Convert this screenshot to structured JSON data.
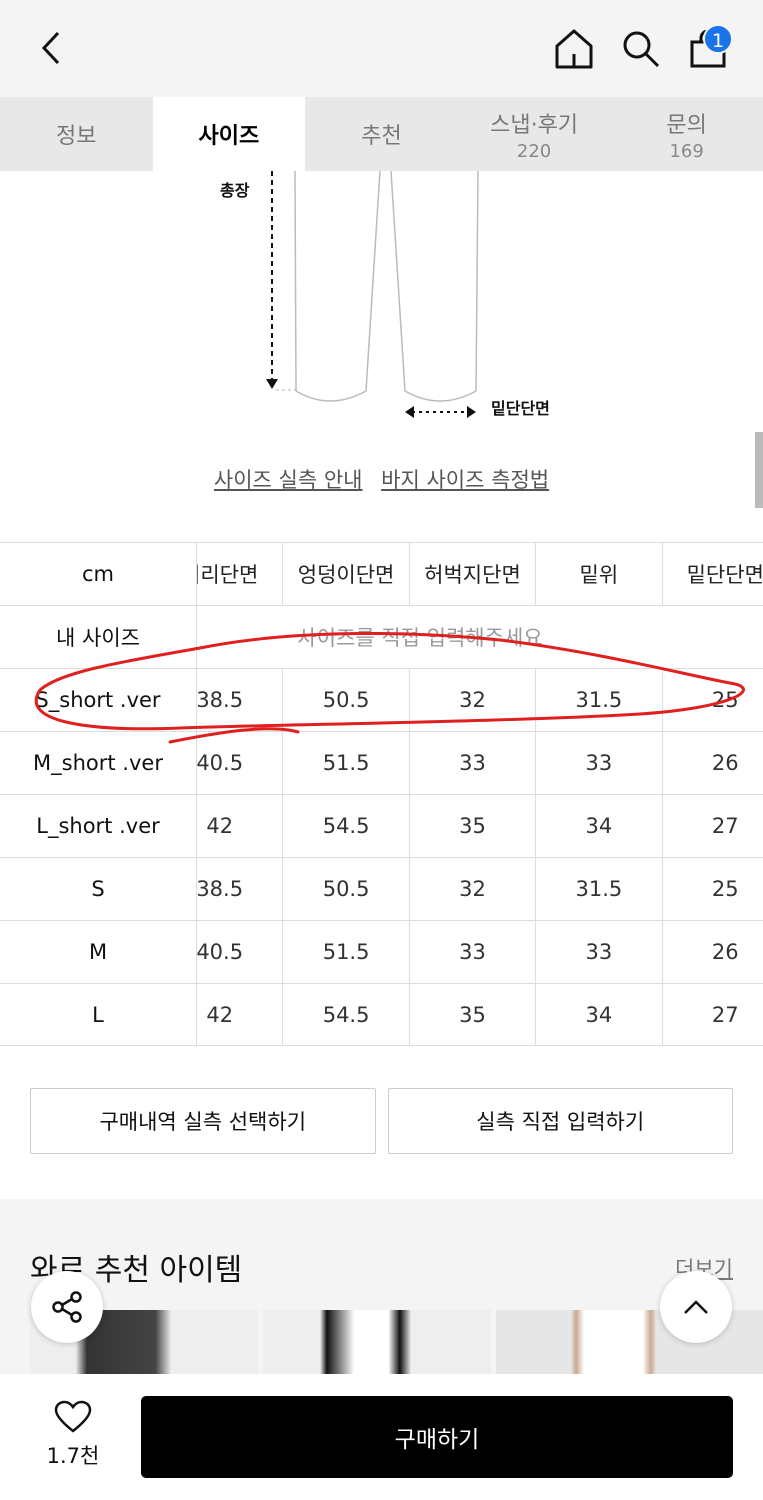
{
  "header": {
    "back_icon": "chevron-left-icon",
    "home_icon": "home-icon",
    "search_icon": "search-icon",
    "cart_icon": "shopping-bag-icon",
    "cart_badge": "1",
    "badge_color": "#1a73e8"
  },
  "tabs": [
    {
      "label": "정보"
    },
    {
      "label": "사이즈",
      "active": true
    },
    {
      "label": "추천"
    },
    {
      "label": "스냅·후기",
      "count": "220"
    },
    {
      "label": "문의",
      "count": "169"
    }
  ],
  "diagram": {
    "length_label": "총장",
    "hem_label": "밑단단면"
  },
  "links": {
    "size_guide": "사이즈 실측 안내",
    "measure_guide": "바지 사이즈 측정법"
  },
  "size_table": {
    "unit": "cm",
    "columns": [
      "허리단면",
      "엉덩이단면",
      "허벅지단면",
      "밑위",
      "밑단단면"
    ],
    "my_size_label": "내 사이즈",
    "my_size_placeholder": "사이즈를 직접 입력해주세요",
    "rows": [
      {
        "name": "S_short .ver",
        "values": [
          "38.5",
          "50.5",
          "32",
          "31.5",
          "25"
        ]
      },
      {
        "name": "M_short .ver",
        "values": [
          "40.5",
          "51.5",
          "33",
          "33",
          "26"
        ]
      },
      {
        "name": "L_short .ver",
        "values": [
          "42",
          "54.5",
          "35",
          "34",
          "27"
        ]
      },
      {
        "name": "S",
        "values": [
          "38.5",
          "50.5",
          "32",
          "31.5",
          "25"
        ]
      },
      {
        "name": "M",
        "values": [
          "40.5",
          "51.5",
          "33",
          "33",
          "26"
        ]
      },
      {
        "name": "L",
        "values": [
          "42",
          "54.5",
          "35",
          "34",
          "27"
        ]
      }
    ],
    "highlight_color": "#e0201e"
  },
  "buttons": {
    "purchase_history": "구매내역 실측 선택하기",
    "manual_input": "실측 직접 입력하기"
  },
  "recommend": {
    "title": "와르 추천 아이템",
    "more": "더보기"
  },
  "bottom": {
    "like_count": "1.7천",
    "buy": "구매하기"
  }
}
